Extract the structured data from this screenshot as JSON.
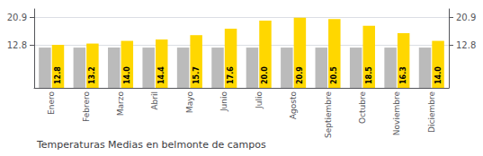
{
  "chart_data": {
    "type": "bar",
    "title": "Temperaturas Medias en belmonte de campos",
    "categories": [
      "Enero",
      "Febrero",
      "Marzo",
      "Abril",
      "Mayo",
      "Junio",
      "Julio",
      "Agosto",
      "Septiembre",
      "Octubre",
      "Noviembre",
      "Diciembre"
    ],
    "series": [
      {
        "color": "#BBBBBB",
        "values": [
          12.0,
          12.0,
          12.0,
          12.0,
          12.0,
          12.0,
          12.0,
          12.0,
          12.0,
          12.0,
          12.0,
          12.0
        ]
      },
      {
        "color": "#FFD700",
        "values": [
          12.8,
          13.2,
          14.0,
          14.4,
          15.7,
          17.6,
          20.0,
          20.9,
          20.5,
          18.5,
          16.3,
          14.0
        ],
        "data_labels": true,
        "value_labels": [
          "12.8",
          "13.2",
          "14.0",
          "14.4",
          "15.7",
          "17.6",
          "20.0",
          "20.9",
          "20.5",
          "18.5",
          "16.3",
          "14.0"
        ]
      }
    ],
    "ylim": [
      0.0,
      23.5
    ],
    "yticks": [
      12.8,
      20.9
    ],
    "y2lim": [
      0.0,
      23.5
    ],
    "y2ticks": [
      12.8,
      20.9
    ],
    "grid": true
  }
}
